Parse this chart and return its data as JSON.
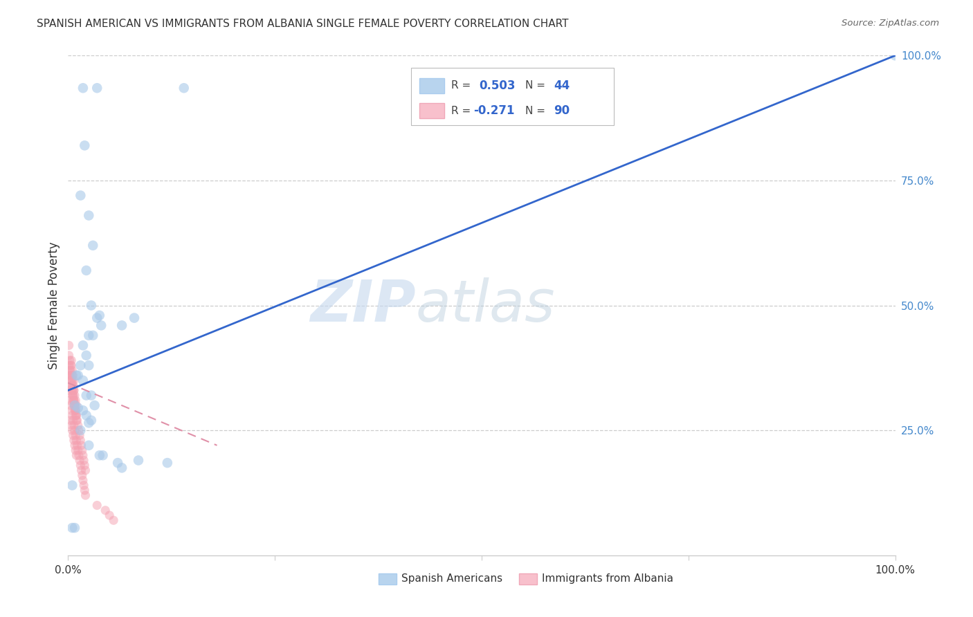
{
  "title": "SPANISH AMERICAN VS IMMIGRANTS FROM ALBANIA SINGLE FEMALE POVERTY CORRELATION CHART",
  "source": "Source: ZipAtlas.com",
  "ylabel": "Single Female Poverty",
  "watermark_zip": "ZIP",
  "watermark_atlas": "atlas",
  "legend_blue_r": "R = ",
  "legend_blue_r_val": "0.503",
  "legend_blue_n": "N = ",
  "legend_blue_n_val": "44",
  "legend_pink_r": "R = ",
  "legend_pink_r_val": "-0.271",
  "legend_pink_n": "N = ",
  "legend_pink_n_val": "90",
  "legend_label_blue": "Spanish Americans",
  "legend_label_pink": "Immigrants from Albania",
  "blue_color": "#a8c8e8",
  "pink_color": "#f4a0b0",
  "blue_line_color": "#3366cc",
  "pink_line_color": "#e090a8",
  "grid_color": "#cccccc",
  "axis_color": "#cccccc",
  "text_color": "#333333",
  "right_tick_color": "#4488cc",
  "xlim": [
    0,
    1.0
  ],
  "ylim": [
    0,
    1.0
  ],
  "blue_line_x0": 0.0,
  "blue_line_y0": 0.33,
  "blue_line_x1": 1.0,
  "blue_line_y1": 1.0,
  "pink_line_x0": 0.0,
  "pink_line_y0": 0.345,
  "pink_line_x1": 0.18,
  "pink_line_y1": 0.22,
  "blue_x": [
    0.018,
    0.035,
    0.14,
    0.02,
    0.015,
    0.025,
    0.03,
    0.022,
    0.028,
    0.038,
    0.04,
    0.025,
    0.03,
    0.018,
    0.022,
    0.035,
    0.08,
    0.065,
    0.025,
    0.015,
    0.01,
    0.012,
    0.018,
    0.022,
    0.028,
    0.032,
    0.085,
    0.12,
    0.06,
    0.065,
    0.038,
    0.042,
    0.025,
    0.015,
    0.008,
    0.012,
    1.0,
    0.005,
    0.008,
    0.022,
    0.028,
    0.018,
    0.025,
    0.005
  ],
  "blue_y": [
    0.935,
    0.935,
    0.935,
    0.82,
    0.72,
    0.68,
    0.62,
    0.57,
    0.5,
    0.48,
    0.46,
    0.44,
    0.44,
    0.42,
    0.4,
    0.475,
    0.475,
    0.46,
    0.38,
    0.38,
    0.36,
    0.36,
    0.35,
    0.32,
    0.32,
    0.3,
    0.19,
    0.185,
    0.185,
    0.175,
    0.2,
    0.2,
    0.22,
    0.25,
    0.3,
    0.295,
    1.0,
    0.055,
    0.055,
    0.28,
    0.27,
    0.29,
    0.265,
    0.14
  ],
  "pink_x": [
    0.001,
    0.001,
    0.002,
    0.002,
    0.003,
    0.003,
    0.003,
    0.004,
    0.004,
    0.004,
    0.005,
    0.005,
    0.005,
    0.006,
    0.006,
    0.006,
    0.007,
    0.007,
    0.007,
    0.008,
    0.008,
    0.008,
    0.009,
    0.009,
    0.009,
    0.01,
    0.01,
    0.01,
    0.011,
    0.011,
    0.012,
    0.012,
    0.013,
    0.013,
    0.014,
    0.014,
    0.015,
    0.015,
    0.016,
    0.016,
    0.017,
    0.017,
    0.018,
    0.018,
    0.019,
    0.019,
    0.02,
    0.02,
    0.021,
    0.021,
    0.001,
    0.002,
    0.003,
    0.004,
    0.005,
    0.006,
    0.007,
    0.008,
    0.009,
    0.01,
    0.001,
    0.002,
    0.003,
    0.004,
    0.005,
    0.006,
    0.007,
    0.008,
    0.009,
    0.01,
    0.035,
    0.045,
    0.05,
    0.055,
    0.003,
    0.004,
    0.005,
    0.006,
    0.007,
    0.008,
    0.009,
    0.01,
    0.005,
    0.006,
    0.007,
    0.004,
    0.006,
    0.007,
    0.005,
    0.004
  ],
  "pink_y": [
    0.38,
    0.33,
    0.36,
    0.31,
    0.35,
    0.3,
    0.27,
    0.34,
    0.29,
    0.26,
    0.33,
    0.28,
    0.25,
    0.32,
    0.27,
    0.24,
    0.31,
    0.26,
    0.23,
    0.3,
    0.25,
    0.22,
    0.29,
    0.24,
    0.21,
    0.28,
    0.23,
    0.2,
    0.27,
    0.22,
    0.26,
    0.21,
    0.25,
    0.2,
    0.24,
    0.19,
    0.23,
    0.18,
    0.22,
    0.17,
    0.21,
    0.16,
    0.2,
    0.15,
    0.19,
    0.14,
    0.18,
    0.13,
    0.17,
    0.12,
    0.4,
    0.37,
    0.36,
    0.34,
    0.32,
    0.31,
    0.3,
    0.29,
    0.28,
    0.27,
    0.42,
    0.39,
    0.37,
    0.35,
    0.33,
    0.32,
    0.31,
    0.3,
    0.29,
    0.28,
    0.1,
    0.09,
    0.08,
    0.07,
    0.38,
    0.36,
    0.35,
    0.34,
    0.33,
    0.32,
    0.31,
    0.3,
    0.37,
    0.36,
    0.35,
    0.38,
    0.34,
    0.33,
    0.36,
    0.39
  ]
}
